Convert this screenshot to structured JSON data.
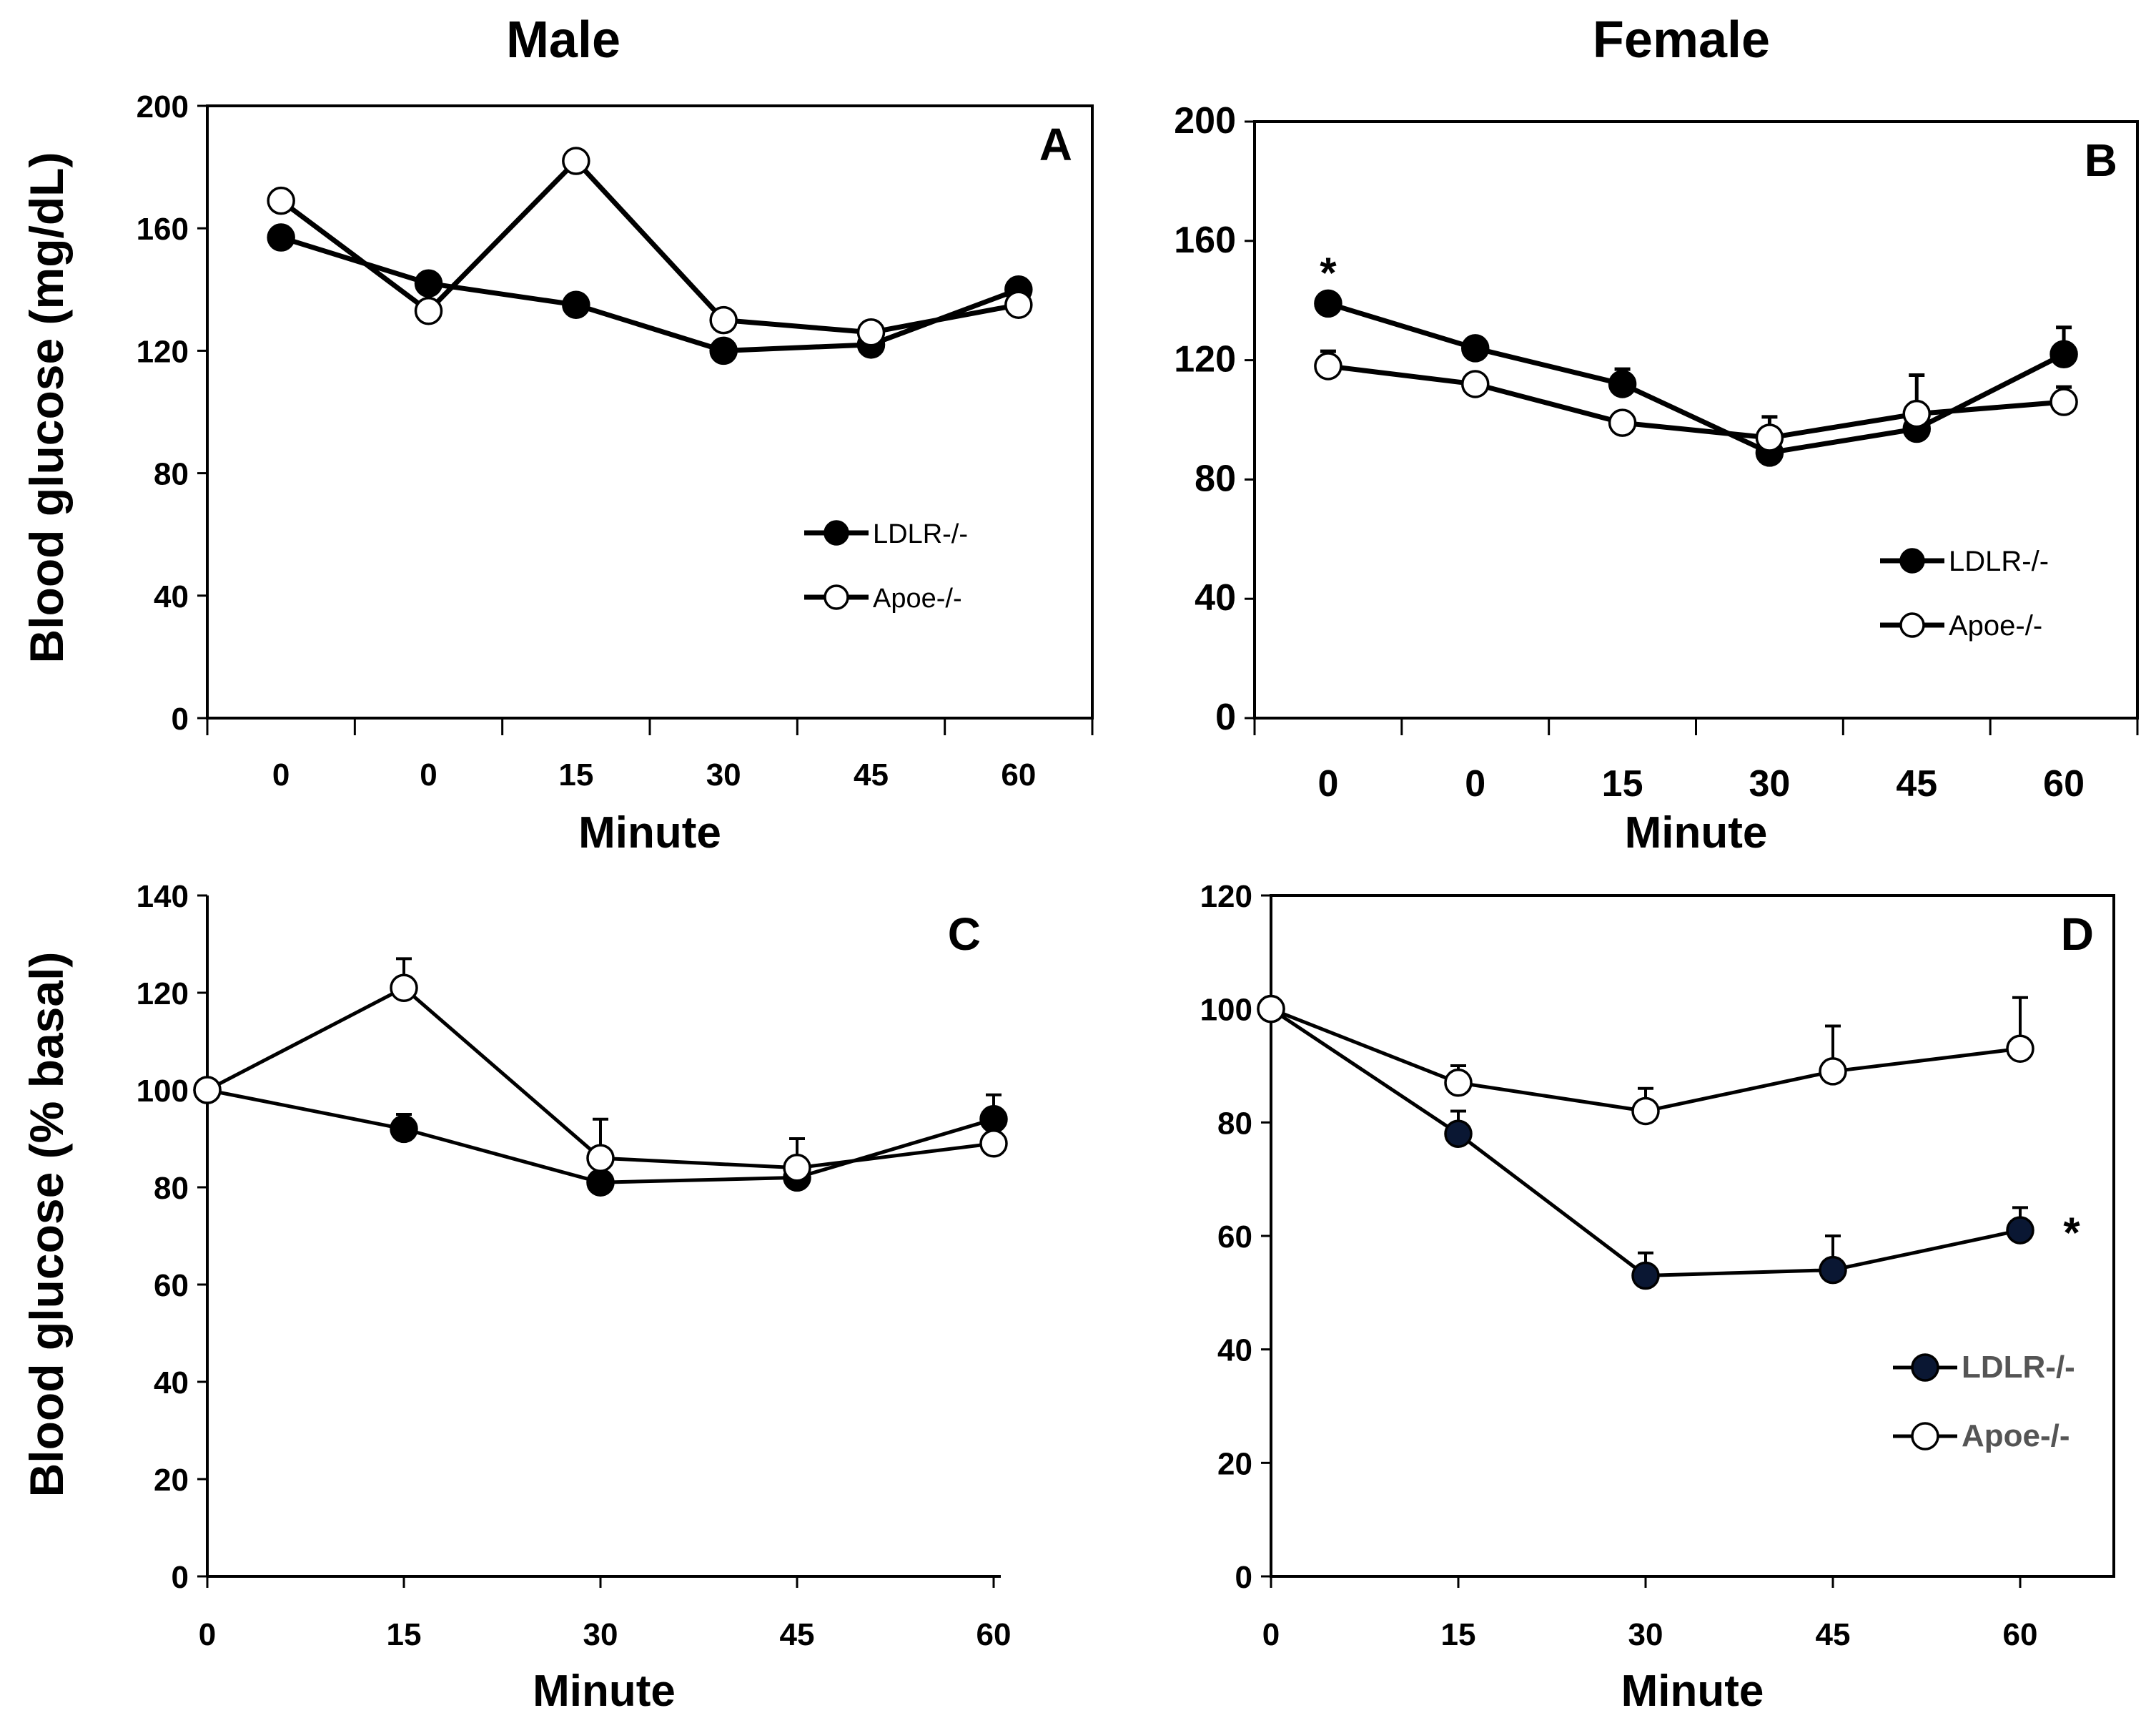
{
  "column_titles": {
    "male": "Male",
    "female": "Female"
  },
  "y_labels": {
    "top": "Blood glucose (mg/dL)",
    "bottom": "Blood glucose (% basal)"
  },
  "series_style": {
    "LDLR-/-": {
      "fill": "#000000",
      "stroke": "#000000"
    },
    "Apoe-/-": {
      "fill": "#ffffff",
      "stroke": "#000000"
    }
  },
  "chart_data": [
    {
      "panel": "A",
      "type": "line",
      "xlabel": "Minute",
      "categories": [
        "0",
        "0",
        "15",
        "30",
        "45",
        "60"
      ],
      "ylim": [
        0,
        200
      ],
      "yticks": [
        0,
        40,
        80,
        120,
        160,
        200
      ],
      "legend_position": "middle-right",
      "series": [
        {
          "name": "LDLR-/-",
          "values": [
            157,
            142,
            135,
            120,
            122,
            140
          ],
          "errors": [
            0,
            0,
            0,
            0,
            0,
            0
          ]
        },
        {
          "name": "Apoe-/-",
          "values": [
            169,
            133,
            182,
            130,
            126,
            135
          ],
          "errors": [
            0,
            0,
            0,
            0,
            0,
            0
          ]
        }
      ],
      "annotations": []
    },
    {
      "panel": "B",
      "type": "line",
      "xlabel": "Minute",
      "categories": [
        "0",
        "0",
        "15",
        "30",
        "45",
        "60"
      ],
      "ylim": [
        0,
        200
      ],
      "yticks": [
        0,
        40,
        80,
        120,
        160,
        200
      ],
      "legend_position": "lower-right",
      "series": [
        {
          "name": "LDLR-/-",
          "values": [
            139,
            124,
            112,
            89,
            97,
            122
          ],
          "errors": [
            3,
            2,
            5,
            5,
            5,
            9
          ]
        },
        {
          "name": "Apoe-/-",
          "values": [
            118,
            112,
            99,
            94,
            102,
            106
          ],
          "errors": [
            5,
            2,
            2,
            7,
            13,
            5
          ]
        }
      ],
      "annotations": [
        {
          "text": "*",
          "x_index": 0,
          "series": "LDLR-/-"
        }
      ]
    },
    {
      "panel": "C",
      "type": "line",
      "xlabel": "Minute",
      "categories": [
        "0",
        "15",
        "30",
        "45",
        "60"
      ],
      "ylim": [
        0,
        140
      ],
      "yticks": [
        0,
        20,
        40,
        60,
        80,
        100,
        120,
        140
      ],
      "legend_position": "none",
      "series": [
        {
          "name": "LDLR-/-",
          "values": [
            100,
            92,
            81,
            82,
            94
          ],
          "errors": [
            0,
            3,
            0,
            0,
            5
          ]
        },
        {
          "name": "Apoe-/-",
          "values": [
            100,
            121,
            86,
            84,
            89
          ],
          "errors": [
            0,
            6,
            8,
            6,
            0
          ]
        }
      ],
      "annotations": []
    },
    {
      "panel": "D",
      "type": "line",
      "xlabel": "Minute",
      "categories": [
        "0",
        "15",
        "30",
        "45",
        "60"
      ],
      "ylim": [
        0,
        120
      ],
      "yticks": [
        0,
        20,
        40,
        60,
        80,
        100,
        120
      ],
      "legend_position": "lower-right",
      "series": [
        {
          "name": "LDLR-/-",
          "values": [
            100,
            78,
            53,
            54,
            61
          ],
          "errors": [
            0,
            4,
            4,
            6,
            4
          ],
          "fill": "#0a1733"
        },
        {
          "name": "Apoe-/-",
          "values": [
            100,
            87,
            82,
            89,
            93
          ],
          "errors": [
            0,
            3,
            4,
            8,
            9
          ]
        }
      ],
      "annotations": [
        {
          "text": "*",
          "x_index": 4,
          "series": "LDLR-/-"
        }
      ]
    }
  ]
}
